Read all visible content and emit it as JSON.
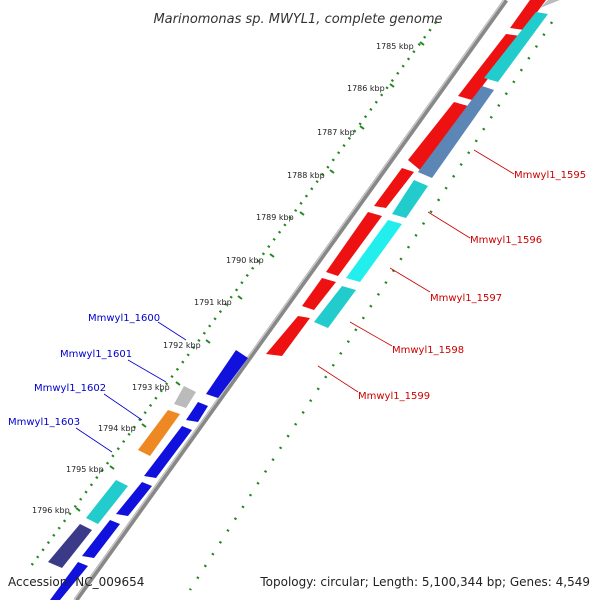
{
  "title": "Marinomonas sp. MWYL1, complete genome",
  "footer": {
    "accession": "Accession: NC_009654",
    "summary": "Topology: circular; Length: 5,100,344 bp; Genes: 4,549"
  },
  "scale_labels": [
    "1785 kbp",
    "1786 kbp",
    "1787 kbp",
    "1788 kbp",
    "1789 kbp",
    "1790 kbp",
    "1791 kbp",
    "1792 kbp",
    "1793 kbp",
    "1794 kbp",
    "1795 kbp",
    "1796 kbp"
  ],
  "gene_labels": {
    "right": [
      "Mmwyl1_1595",
      "Mmwyl1_1596",
      "Mmwyl1_1597",
      "Mmwyl1_1598",
      "Mmwyl1_1599"
    ],
    "left": [
      "Mmwyl1_1600",
      "Mmwyl1_1601",
      "Mmwyl1_1602",
      "Mmwyl1_1603"
    ]
  },
  "colors": {
    "forward_gene": "#ee1111",
    "reverse_gene": "#1111dd",
    "cyan_gene": "#22cccc",
    "steelblue_gene": "#5b86b5",
    "orange_gene": "#ee8822",
    "gray_gene": "#bbbbbb",
    "darkblue_gene": "#3a3a88",
    "backbone": "#888888",
    "dotted_track": "#228822",
    "right_label": "#cc0000",
    "left_label": "#0000cc"
  }
}
